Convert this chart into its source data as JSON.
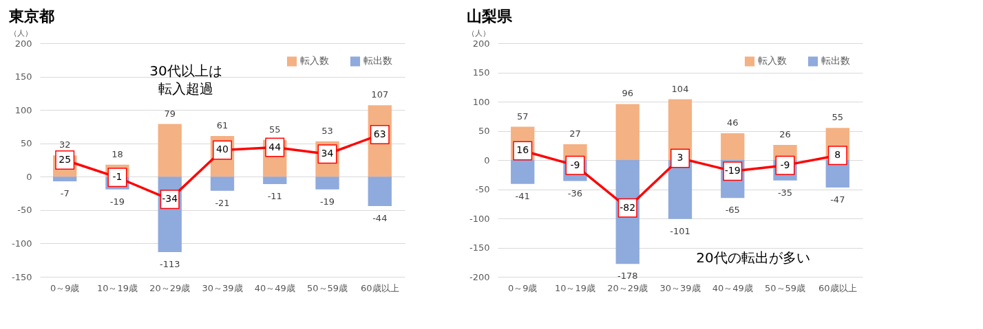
{
  "chart_data": [
    {
      "type": "bar",
      "title": "東京都",
      "ylabel": "（人）",
      "stacked": true,
      "grid": "y",
      "legend": "top right",
      "data_labels": true,
      "marker": "square",
      "line_style": "solid",
      "categories": [
        "0～9歳",
        "10～19歳",
        "20～29歳",
        "30～39歳",
        "40～49歳",
        "50～59歳",
        "60歳以上"
      ],
      "ylim": [
        -150,
        200
      ],
      "yticks": [
        -150,
        -100,
        -50,
        0,
        50,
        100,
        150,
        200
      ],
      "series": [
        {
          "name": "転入数",
          "color": "#f4b183",
          "values": [
            32,
            18,
            79,
            61,
            55,
            53,
            107
          ]
        },
        {
          "name": "転出数",
          "color": "#8faadc",
          "values": [
            -7,
            -19,
            -113,
            -21,
            -11,
            -19,
            -44
          ]
        },
        {
          "type": "line",
          "color": "#ff0000",
          "values": [
            25,
            -1,
            -34,
            40,
            44,
            34,
            63
          ]
        }
      ],
      "annotations": [
        "30代以上は転入超過"
      ]
    },
    {
      "type": "bar",
      "title": "山梨県",
      "ylabel": "（人）",
      "stacked": true,
      "grid": "y",
      "legend": "top right",
      "data_labels": true,
      "marker": "square",
      "line_style": "solid",
      "categories": [
        "0～9歳",
        "10～19歳",
        "20～29歳",
        "30～39歳",
        "40～49歳",
        "50～59歳",
        "60歳以上"
      ],
      "ylim": [
        -200,
        200
      ],
      "yticks": [
        -200,
        -150,
        -100,
        -50,
        0,
        50,
        100,
        150,
        200
      ],
      "series": [
        {
          "name": "転入数",
          "color": "#f4b183",
          "values": [
            57,
            27,
            96,
            104,
            46,
            26,
            55
          ]
        },
        {
          "name": "転出数",
          "color": "#8faadc",
          "values": [
            -41,
            -36,
            -178,
            -101,
            -65,
            -35,
            -47
          ]
        },
        {
          "type": "line",
          "color": "#ff0000",
          "values": [
            16,
            -9,
            -82,
            3,
            -19,
            -9,
            8
          ]
        }
      ],
      "annotations": [
        "20代の転出が多い"
      ]
    }
  ]
}
